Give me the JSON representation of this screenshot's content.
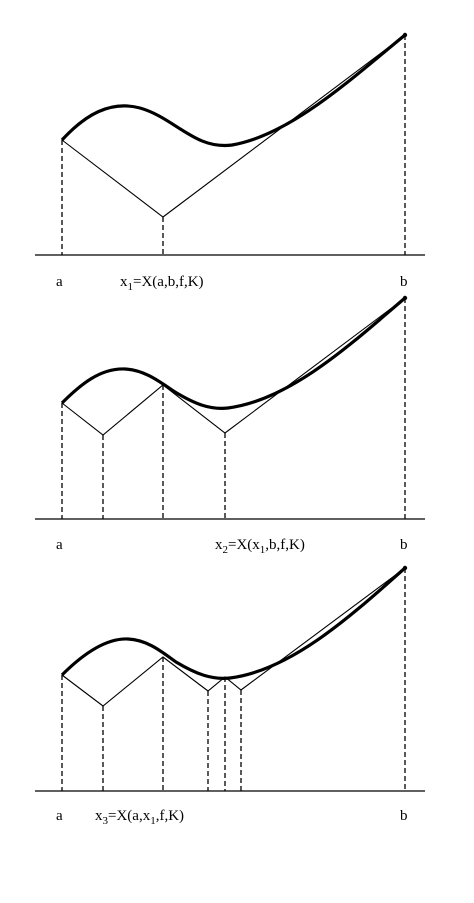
{
  "panels": [
    {
      "left_label": "a",
      "right_label": "b",
      "formula": [
        {
          "text": "x"
        },
        {
          "text": "1",
          "sub": true
        },
        {
          "text": "=X(a,b,f,K)"
        }
      ]
    },
    {
      "left_label": "a",
      "right_label": "b",
      "formula": [
        {
          "text": "x"
        },
        {
          "text": "2",
          "sub": true
        },
        {
          "text": "=X(x"
        },
        {
          "text": "1",
          "sub": true
        },
        {
          "text": ",b,f,K)"
        }
      ]
    },
    {
      "left_label": "a",
      "right_label": "b",
      "formula": [
        {
          "text": "x"
        },
        {
          "text": "3",
          "sub": true
        },
        {
          "text": "=X(a,x"
        },
        {
          "text": "1",
          "sub": true
        },
        {
          "text": ",f,K)"
        }
      ]
    }
  ]
}
